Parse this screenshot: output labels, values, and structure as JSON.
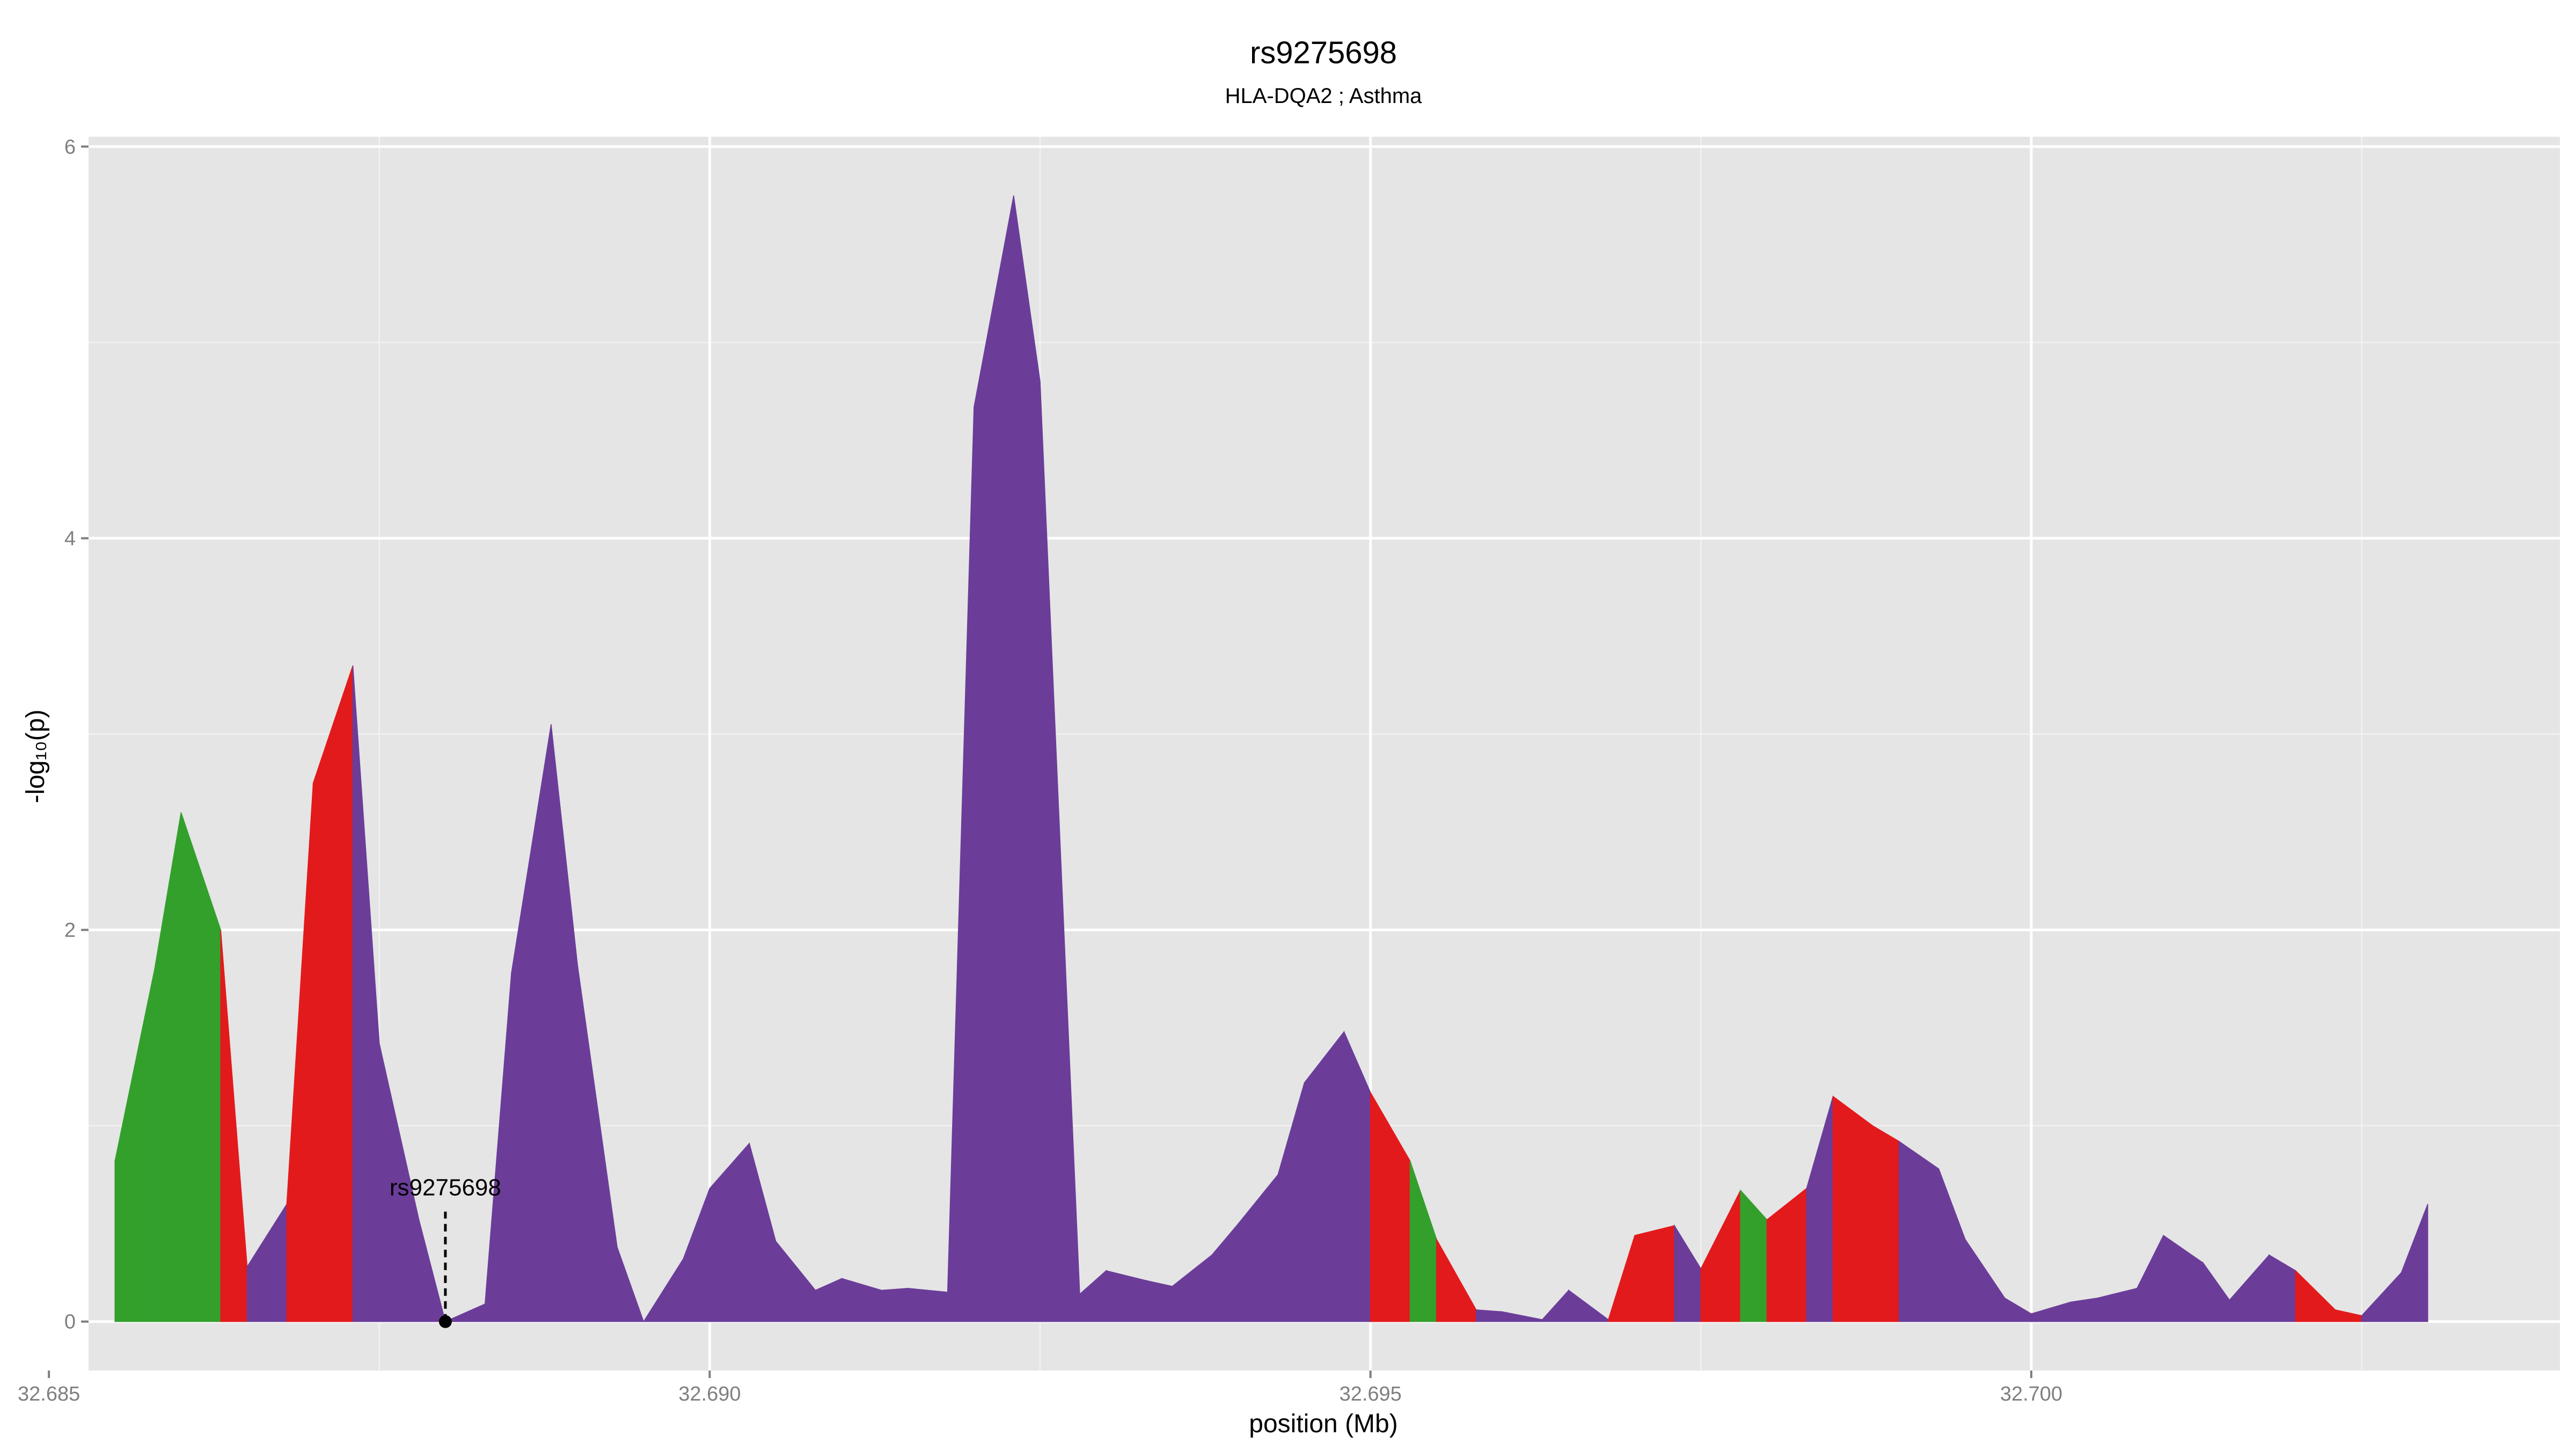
{
  "chart_data": {
    "type": "area",
    "title": "rs9275698",
    "subtitle": "HLA-DQA2 ; Asthma",
    "xlabel": "position (Mb)",
    "ylabel": "-log₁₀(p)",
    "xlim": [
      32.6853,
      32.704
    ],
    "ylim": [
      -0.25,
      6.05
    ],
    "x_ticks": [
      "32.685",
      "32.690",
      "32.695",
      "32.700"
    ],
    "y_ticks": [
      "0",
      "2",
      "4",
      "6"
    ],
    "grid": true,
    "colors": {
      "panel": "#e5e5e5",
      "grid": "#ffffff",
      "purple": "#6b3d99",
      "red": "#e31a1c",
      "green": "#33a02c",
      "marker": "#000000"
    },
    "annotation": {
      "label": "rs9275698",
      "x": 32.688,
      "y": 0.0
    },
    "x": [
      32.6855,
      32.6858,
      32.686,
      32.6863,
      32.6865,
      32.6868,
      32.687,
      32.6873,
      32.6875,
      32.6878,
      32.688,
      32.6883,
      32.6885,
      32.6888,
      32.689,
      32.6893,
      32.6895,
      32.6898,
      32.69,
      32.6903,
      32.6905,
      32.6908,
      32.691,
      32.6913,
      32.6915,
      32.6918,
      32.692,
      32.6923,
      32.6925,
      32.6928,
      32.693,
      32.6933,
      32.6935,
      32.6938,
      32.694,
      32.6943,
      32.6945,
      32.6948,
      32.695,
      32.6953,
      32.6955,
      32.6958,
      32.696,
      32.6963,
      32.6965,
      32.6968,
      32.697,
      32.6973,
      32.6975,
      32.6978,
      32.698,
      32.6983,
      32.6985,
      32.6988,
      32.699,
      32.6993,
      32.6995,
      32.6998,
      32.7,
      32.7003,
      32.7005,
      32.7008,
      32.701,
      32.7013,
      32.7015,
      32.7018,
      32.702,
      32.7023,
      32.7025,
      32.7028,
      32.703
    ],
    "y": [
      0.82,
      1.8,
      2.6,
      2.0,
      0.28,
      0.6,
      2.75,
      3.35,
      1.42,
      0.52,
      0.0,
      0.09,
      1.78,
      3.05,
      1.82,
      0.38,
      0.0,
      0.32,
      0.68,
      0.91,
      0.41,
      0.16,
      0.22,
      0.16,
      0.17,
      0.15,
      4.67,
      5.75,
      4.8,
      0.14,
      0.26,
      0.21,
      0.18,
      0.34,
      0.5,
      0.75,
      1.22,
      1.48,
      1.17,
      0.82,
      0.42,
      0.06,
      0.05,
      0.01,
      0.16,
      0.01,
      0.44,
      0.49,
      0.27,
      0.67,
      0.52,
      0.68,
      1.15,
      1.0,
      0.92,
      0.78,
      0.42,
      0.12,
      0.04,
      0.1,
      0.12,
      0.17,
      0.44,
      0.3,
      0.11,
      0.34,
      0.26,
      0.06,
      0.03,
      0.25,
      0.6
    ],
    "segment_colors": [
      "green",
      "green",
      "green",
      "red",
      "purple",
      "red",
      "red",
      "purple",
      "purple",
      "purple",
      "purple",
      "purple",
      "purple",
      "purple",
      "purple",
      "purple",
      "purple",
      "purple",
      "purple",
      "purple",
      "purple",
      "purple",
      "purple",
      "purple",
      "purple",
      "purple",
      "purple",
      "purple",
      "purple",
      "purple",
      "purple",
      "purple",
      "purple",
      "purple",
      "purple",
      "purple",
      "purple",
      "purple",
      "red",
      "green",
      "red",
      "purple",
      "purple",
      "purple",
      "purple",
      "red",
      "red",
      "purple",
      "red",
      "green",
      "red",
      "purple",
      "red",
      "red",
      "purple",
      "purple",
      "purple",
      "purple",
      "purple",
      "purple",
      "purple",
      "purple",
      "purple",
      "purple",
      "purple",
      "purple",
      "red",
      "red",
      "purple",
      "purple"
    ]
  }
}
